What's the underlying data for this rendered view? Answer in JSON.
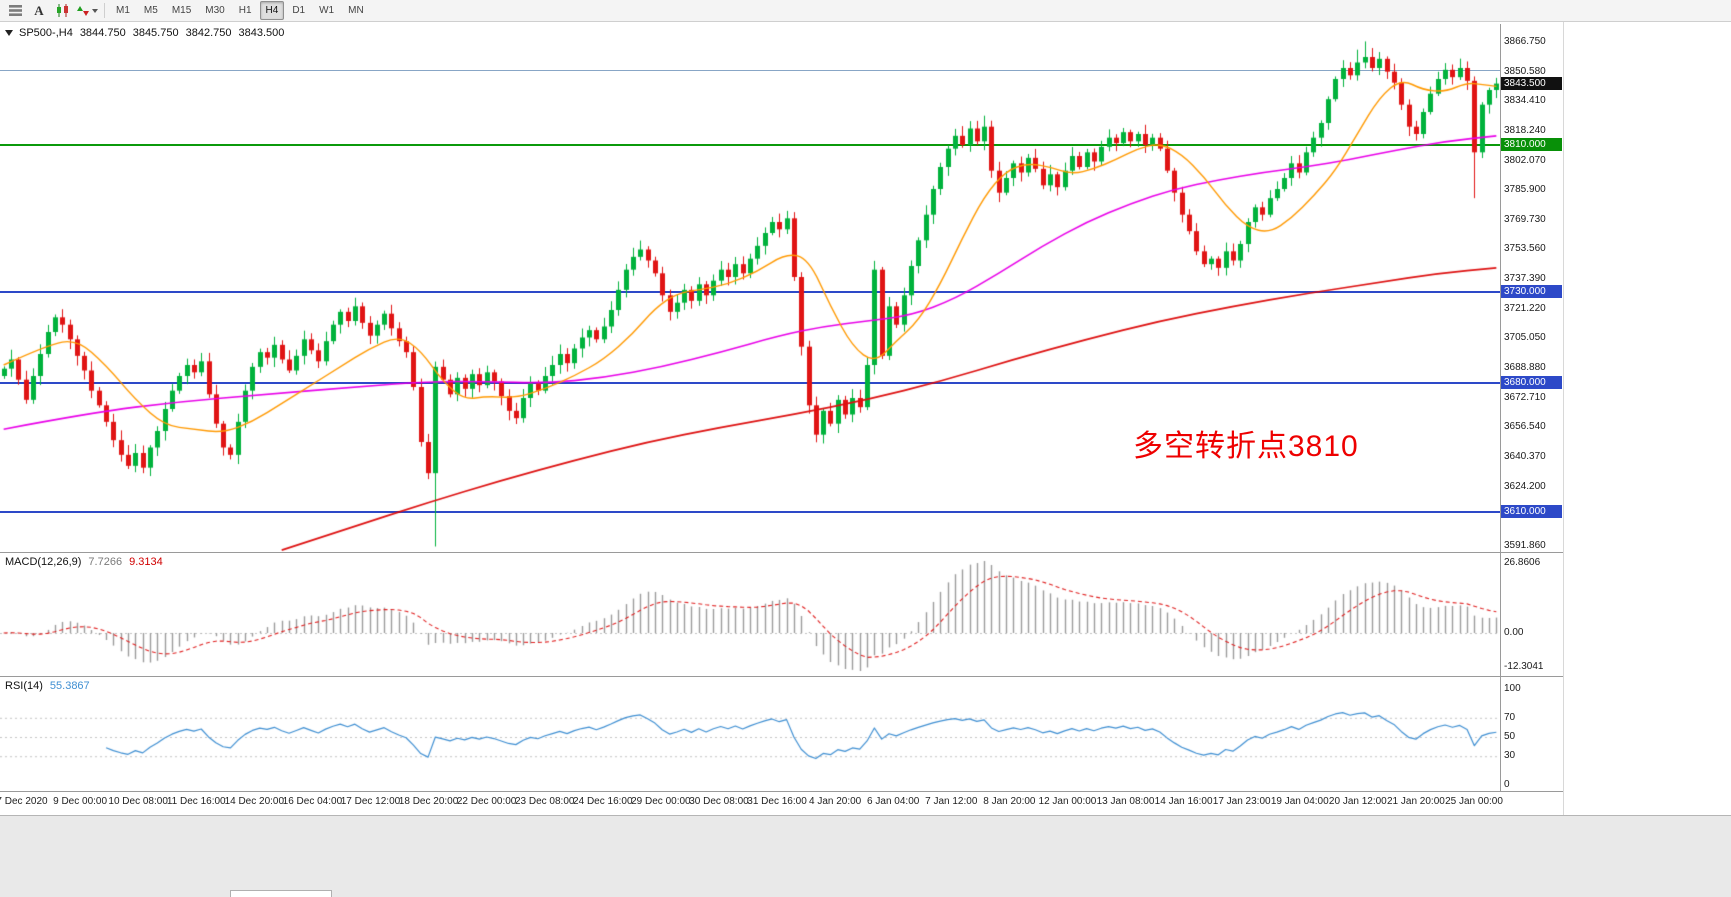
{
  "toolbar": {
    "font_button": "A",
    "timeframes": [
      "M1",
      "M5",
      "M15",
      "M30",
      "H1",
      "H4",
      "D1",
      "W1",
      "MN"
    ],
    "active_timeframe": "H4"
  },
  "chart": {
    "title": "SP500-,H4",
    "ohlc": {
      "open": "3844.750",
      "high": "3845.750",
      "low": "3842.750",
      "close": "3843.500"
    },
    "current_price": "3843.500",
    "price_axis": [
      "3866.750",
      "3850.580",
      "3834.410",
      "3818.240",
      "3802.070",
      "3785.900",
      "3769.730",
      "3753.560",
      "3737.390",
      "3721.220",
      "3705.050",
      "3688.880",
      "3672.710",
      "3656.540",
      "3640.370",
      "3624.200",
      "3608.030",
      "3591.860"
    ],
    "hlines": [
      {
        "price": 3850.58,
        "color": "#88a6c6",
        "width": 1,
        "badge": null,
        "badge_color": null
      },
      {
        "price": 3810.0,
        "color": "#0b9a0b",
        "width": 2,
        "badge": "3810.000",
        "badge_color": "#089008"
      },
      {
        "price": 3730.0,
        "color": "#2d49c8",
        "width": 2,
        "badge": "3730.000",
        "badge_color": "#2d49c8"
      },
      {
        "price": 3680.0,
        "color": "#2d49c8",
        "width": 2,
        "badge": "3680.000",
        "badge_color": "#2d49c8"
      },
      {
        "price": 3610.0,
        "color": "#2d49c8",
        "width": 2,
        "badge": "3610.000",
        "badge_color": "#2d49c8"
      }
    ],
    "annotation": {
      "text": "多空转折点3810",
      "color": "#ee0000"
    },
    "time_axis": [
      "7 Dec 2020",
      "9 Dec 00:00",
      "10 Dec 08:00",
      "11 Dec 16:00",
      "14 Dec 20:00",
      "16 Dec 04:00",
      "17 Dec 12:00",
      "18 Dec 20:00",
      "22 Dec 00:00",
      "23 Dec 08:00",
      "24 Dec 16:00",
      "29 Dec 00:00",
      "30 Dec 08:00",
      "31 Dec 16:00",
      "4 Jan 20:00",
      "6 Jan 04:00",
      "7 Jan 12:00",
      "8 Jan 20:00",
      "12 Jan 00:00",
      "13 Jan 08:00",
      "14 Jan 16:00",
      "17 Jan 23:00",
      "19 Jan 04:00",
      "20 Jan 12:00",
      "21 Jan 20:00",
      "25 Jan 00:00"
    ]
  },
  "macd": {
    "label": "MACD(12,26,9)",
    "value_main": "7.7266",
    "value_signal": "9.3134",
    "axis": [
      "26.8606",
      "0.00",
      "-12.3041"
    ]
  },
  "rsi": {
    "label": "RSI(14)",
    "value": "55.3867",
    "axis": [
      "100",
      "70",
      "50",
      "30",
      "0"
    ],
    "levels": [
      70,
      50,
      30
    ]
  },
  "chart_data": {
    "type": "candlestick",
    "symbol": "SP500-",
    "timeframe": "H4",
    "title": "SP500-,H4 3844.750 3845.750 3842.750 3843.500",
    "price_range": [
      3588,
      3876
    ],
    "closes": [
      3688,
      3693,
      3682,
      3671,
      3684,
      3696,
      3708,
      3716,
      3712,
      3704,
      3695,
      3687,
      3676,
      3668,
      3659,
      3649,
      3641,
      3635,
      3642,
      3634,
      3645,
      3654,
      3666,
      3676,
      3684,
      3690,
      3686,
      3692,
      3674,
      3658,
      3645,
      3641,
      3659,
      3676,
      3689,
      3697,
      3694,
      3701,
      3693,
      3687,
      3695,
      3704,
      3698,
      3692,
      3703,
      3712,
      3719,
      3714,
      3722,
      3713,
      3706,
      3712,
      3718,
      3710,
      3703,
      3697,
      3678,
      3648,
      3631,
      3689,
      3682,
      3674,
      3683,
      3677,
      3685,
      3679,
      3686,
      3681,
      3673,
      3665,
      3661,
      3672,
      3680,
      3676,
      3684,
      3690,
      3696,
      3691,
      3699,
      3705,
      3709,
      3704,
      3711,
      3720,
      3731,
      3742,
      3749,
      3753,
      3747,
      3740,
      3728,
      3719,
      3724,
      3731,
      3725,
      3734,
      3728,
      3736,
      3742,
      3738,
      3745,
      3740,
      3748,
      3755,
      3762,
      3768,
      3764,
      3770,
      3738,
      3700,
      3668,
      3652,
      3665,
      3658,
      3671,
      3663,
      3672,
      3667,
      3690,
      3742,
      3695,
      3722,
      3712,
      3728,
      3744,
      3758,
      3772,
      3786,
      3798,
      3808,
      3815,
      3810,
      3819,
      3812,
      3820,
      3796,
      3784,
      3792,
      3800,
      3795,
      3803,
      3797,
      3788,
      3794,
      3787,
      3796,
      3804,
      3798,
      3806,
      3801,
      3809,
      3814,
      3811,
      3817,
      3812,
      3816,
      3810,
      3814,
      3808,
      3796,
      3784,
      3772,
      3763,
      3752,
      3745,
      3748,
      3743,
      3752,
      3747,
      3756,
      3768,
      3776,
      3772,
      3781,
      3786,
      3792,
      3800,
      3795,
      3806,
      3814,
      3822,
      3835,
      3846,
      3852,
      3848,
      3855,
      3858,
      3852,
      3857,
      3850,
      3844,
      3832,
      3820,
      3816,
      3828,
      3838,
      3846,
      3851,
      3847,
      3852,
      3845,
      3806,
      3832,
      3840,
      3843.5
    ],
    "special_bars": {
      "59": {
        "low": 3591
      },
      "134": {
        "high": 3826
      },
      "185": {
        "high": 3862
      },
      "186": {
        "high": 3866.5
      },
      "201": {
        "low": 3781
      }
    },
    "ma_fast": {
      "color": "#ff9900",
      "points": [
        [
          0,
          3690
        ],
        [
          6,
          3701
        ],
        [
          10,
          3704
        ],
        [
          14,
          3690
        ],
        [
          18,
          3671
        ],
        [
          22,
          3657
        ],
        [
          26,
          3655
        ],
        [
          30,
          3653
        ],
        [
          34,
          3659
        ],
        [
          38,
          3669
        ],
        [
          42,
          3679
        ],
        [
          46,
          3689
        ],
        [
          50,
          3699
        ],
        [
          54,
          3706
        ],
        [
          57,
          3698
        ],
        [
          60,
          3681
        ],
        [
          63,
          3671
        ],
        [
          66,
          3673
        ],
        [
          70,
          3672
        ],
        [
          74,
          3677
        ],
        [
          78,
          3684
        ],
        [
          82,
          3693
        ],
        [
          86,
          3707
        ],
        [
          89,
          3721
        ],
        [
          92,
          3729
        ],
        [
          95,
          3731
        ],
        [
          99,
          3734
        ],
        [
          103,
          3741
        ],
        [
          107,
          3751
        ],
        [
          110,
          3748
        ],
        [
          113,
          3722
        ],
        [
          116,
          3700
        ],
        [
          119,
          3691
        ],
        [
          122,
          3703
        ],
        [
          125,
          3714
        ],
        [
          128,
          3734
        ],
        [
          131,
          3759
        ],
        [
          134,
          3782
        ],
        [
          137,
          3796
        ],
        [
          140,
          3800
        ],
        [
          143,
          3798
        ],
        [
          146,
          3794
        ],
        [
          149,
          3797
        ],
        [
          152,
          3802
        ],
        [
          155,
          3808
        ],
        [
          158,
          3811
        ],
        [
          161,
          3805
        ],
        [
          164,
          3793
        ],
        [
          167,
          3777
        ],
        [
          170,
          3765
        ],
        [
          173,
          3762
        ],
        [
          176,
          3770
        ],
        [
          179,
          3782
        ],
        [
          182,
          3796
        ],
        [
          185,
          3816
        ],
        [
          188,
          3836
        ],
        [
          191,
          3846
        ],
        [
          194,
          3840
        ],
        [
          197,
          3839
        ],
        [
          200,
          3844
        ],
        [
          202,
          3843
        ],
        [
          204,
          3842
        ]
      ]
    },
    "ma_mid": {
      "color": "#e800e8",
      "points": [
        [
          0,
          3655
        ],
        [
          12,
          3664
        ],
        [
          24,
          3670
        ],
        [
          36,
          3674
        ],
        [
          48,
          3678
        ],
        [
          58,
          3681
        ],
        [
          66,
          3681
        ],
        [
          74,
          3680
        ],
        [
          82,
          3683
        ],
        [
          90,
          3689
        ],
        [
          98,
          3697
        ],
        [
          106,
          3706
        ],
        [
          112,
          3711
        ],
        [
          118,
          3714
        ],
        [
          124,
          3717
        ],
        [
          130,
          3726
        ],
        [
          136,
          3740
        ],
        [
          142,
          3755
        ],
        [
          148,
          3768
        ],
        [
          154,
          3778
        ],
        [
          160,
          3786
        ],
        [
          166,
          3791
        ],
        [
          172,
          3795
        ],
        [
          178,
          3798
        ],
        [
          184,
          3802
        ],
        [
          190,
          3807
        ],
        [
          197,
          3812
        ],
        [
          204,
          3815
        ]
      ]
    },
    "ma_slow": {
      "color": "#dd1111",
      "points": [
        [
          38,
          3589
        ],
        [
          48,
          3602
        ],
        [
          58,
          3615
        ],
        [
          68,
          3627
        ],
        [
          78,
          3638
        ],
        [
          88,
          3648
        ],
        [
          98,
          3656
        ],
        [
          108,
          3663
        ],
        [
          118,
          3671
        ],
        [
          128,
          3681
        ],
        [
          138,
          3693
        ],
        [
          148,
          3704
        ],
        [
          158,
          3714
        ],
        [
          168,
          3722
        ],
        [
          178,
          3729
        ],
        [
          188,
          3735
        ],
        [
          196,
          3740
        ],
        [
          204,
          3743
        ]
      ]
    },
    "colors": {
      "bull": "#00b23c",
      "bear": "#e01414",
      "macd_hist": "#9b9b9b",
      "macd_signal": "#e02020",
      "rsi_line": "#3f8fd2"
    }
  }
}
